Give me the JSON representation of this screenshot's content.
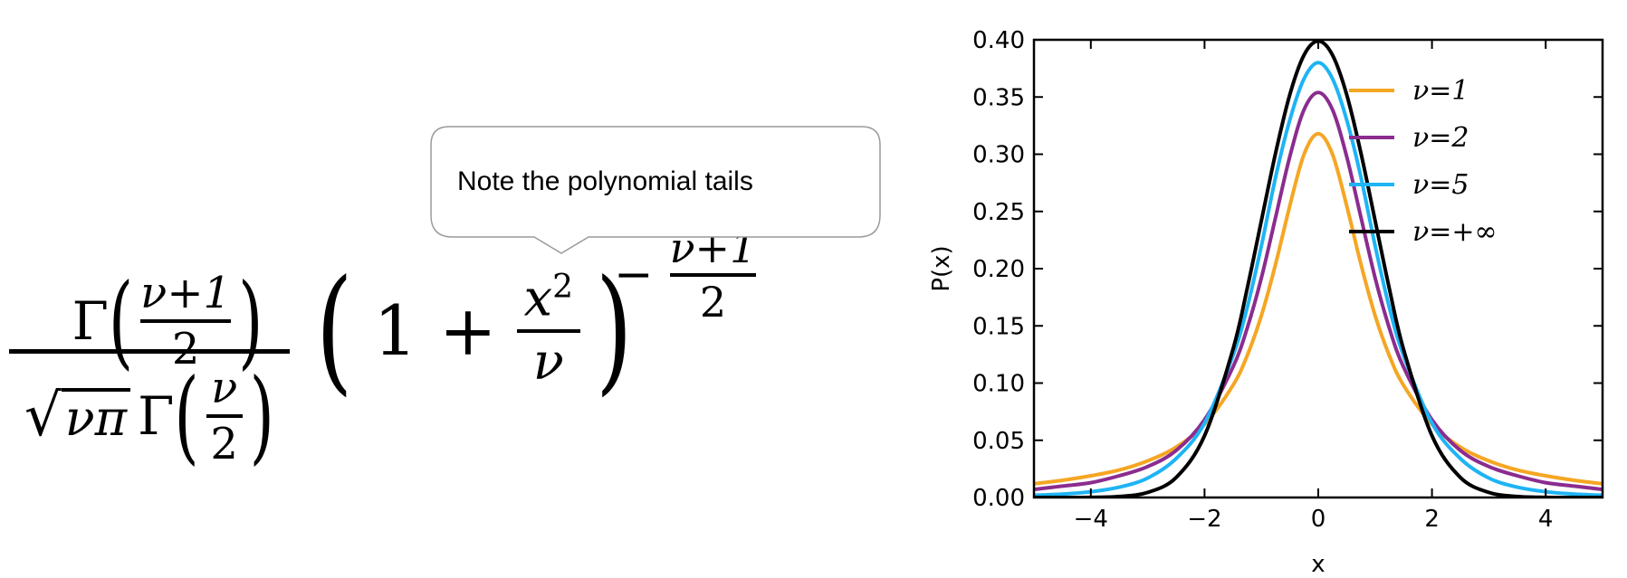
{
  "formula": {
    "gamma": "Γ",
    "num_frac_top": "ν+1",
    "num_frac_bottom": "2",
    "sqrt_content": "νπ",
    "den_frac_top": "ν",
    "den_frac_bottom": "2",
    "one_plus": "1 +",
    "x2_top": "x",
    "x2_power": "2",
    "x2_bottom": "ν",
    "exp_sign": "−",
    "exp_top": "ν+1",
    "exp_bottom": "2"
  },
  "callout": {
    "text": "Note the polynomial tails"
  },
  "colors": {
    "nu1": "#f5a623",
    "nu2": "#8b2c8f",
    "nu5": "#1eb4f5",
    "nuinf": "#000000"
  },
  "chart_data": {
    "type": "line",
    "xlabel": "x",
    "ylabel": "P(x)",
    "xlim": [
      -5,
      5
    ],
    "ylim": [
      0,
      0.4
    ],
    "xticks": [
      -4,
      -2,
      0,
      2,
      4
    ],
    "xtick_labels": [
      "−4",
      "−2",
      "0",
      "2",
      "4"
    ],
    "yticks": [
      0.0,
      0.05,
      0.1,
      0.15,
      0.2,
      0.25,
      0.3,
      0.35,
      0.4
    ],
    "ytick_labels": [
      "0.00",
      "0.05",
      "0.10",
      "0.15",
      "0.20",
      "0.25",
      "0.30",
      "0.35",
      "0.40"
    ],
    "legend_position": "top-right",
    "x": [
      -5,
      -4.5,
      -4,
      -3.5,
      -3,
      -2.5,
      -2,
      -1.5,
      -1.25,
      -1,
      -0.75,
      -0.5,
      -0.25,
      0,
      0.25,
      0.5,
      0.75,
      1,
      1.25,
      1.5,
      2,
      2.5,
      3,
      3.5,
      4,
      4.5,
      5
    ],
    "series": [
      {
        "name": "ν=1",
        "color_key": "nu1",
        "values": [
          0.012,
          0.015,
          0.019,
          0.024,
          0.032,
          0.044,
          0.064,
          0.098,
          0.124,
          0.159,
          0.204,
          0.255,
          0.3,
          0.318,
          0.3,
          0.255,
          0.204,
          0.159,
          0.124,
          0.098,
          0.064,
          0.044,
          0.032,
          0.024,
          0.019,
          0.015,
          0.012
        ]
      },
      {
        "name": "ν=2",
        "color_key": "nu2",
        "values": [
          0.007,
          0.01,
          0.013,
          0.019,
          0.027,
          0.041,
          0.068,
          0.114,
          0.148,
          0.192,
          0.245,
          0.298,
          0.339,
          0.354,
          0.339,
          0.298,
          0.245,
          0.192,
          0.148,
          0.114,
          0.068,
          0.041,
          0.027,
          0.019,
          0.013,
          0.01,
          0.007
        ]
      },
      {
        "name": "ν=5",
        "color_key": "nu5",
        "values": [
          0.002,
          0.003,
          0.005,
          0.009,
          0.017,
          0.034,
          0.065,
          0.124,
          0.166,
          0.22,
          0.28,
          0.33,
          0.366,
          0.38,
          0.366,
          0.33,
          0.28,
          0.22,
          0.166,
          0.124,
          0.065,
          0.034,
          0.017,
          0.009,
          0.005,
          0.003,
          0.002
        ]
      },
      {
        "name": "ν=+∞",
        "color_key": "nuinf",
        "values": [
          0.0,
          0.0,
          0.0001,
          0.0009,
          0.0044,
          0.0175,
          0.054,
          0.1295,
          0.1826,
          0.242,
          0.3011,
          0.3521,
          0.3867,
          0.3989,
          0.3867,
          0.3521,
          0.3011,
          0.242,
          0.1826,
          0.1295,
          0.054,
          0.0175,
          0.0044,
          0.0009,
          0.0001,
          0.0,
          0.0
        ]
      }
    ]
  }
}
